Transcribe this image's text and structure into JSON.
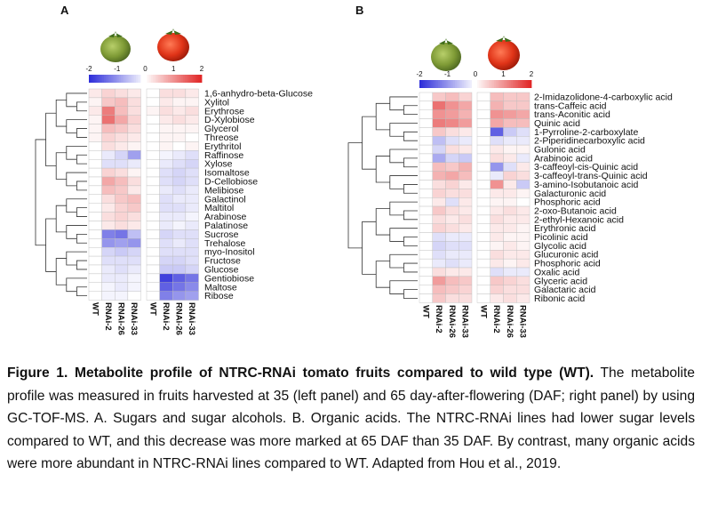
{
  "chart_data": [
    {
      "type": "heatmap",
      "title": "A",
      "columns": [
        "WT",
        "RNAi-2",
        "RNAi-26",
        "RNAi-33",
        "WT",
        "RNAi-2",
        "RNAi-26",
        "RNAi-33"
      ],
      "rows": [
        "1,6-anhydro-beta-Glucose",
        "Xylitol",
        "Erythrose",
        "D-Xylobiose",
        "Glycerol",
        "Threose",
        "Erythritol",
        "Raffinose",
        "Xylose",
        "Isomaltose",
        "D-Cellobiose",
        "Melibiose",
        "Galactinol",
        "Maltitol",
        "Arabinose",
        "Palatinose",
        "Sucrose",
        "Trehalose",
        "myo-Inositol",
        "Fructose",
        "Glucose",
        "Gentiobiose",
        "Maltose",
        "Ribose"
      ],
      "values": [
        [
          0.2,
          0.4,
          0.3,
          0.2,
          0,
          0.3,
          0.3,
          0.2
        ],
        [
          0.1,
          0.5,
          0.6,
          0.3,
          0,
          0.2,
          0.1,
          0.1
        ],
        [
          0.2,
          1.2,
          0.6,
          0.3,
          0.1,
          0.3,
          0.2,
          0.3
        ],
        [
          0.1,
          1.3,
          0.8,
          0.4,
          0,
          0.2,
          0.3,
          0.2
        ],
        [
          0.1,
          0.6,
          0.5,
          0.3,
          0,
          0.1,
          0.1,
          0.1
        ],
        [
          0.1,
          0.4,
          0.3,
          0.2,
          0,
          0.1,
          0.1,
          0
        ],
        [
          0,
          0.3,
          0.2,
          0.1,
          0,
          0.1,
          0,
          0.1
        ],
        [
          0,
          -0.2,
          -0.4,
          -0.9,
          0,
          -0.1,
          -0.2,
          -0.3
        ],
        [
          0,
          -0.3,
          -0.3,
          -0.2,
          0,
          -0.2,
          -0.3,
          -0.4
        ],
        [
          0,
          0.4,
          0.3,
          0.1,
          0,
          -0.3,
          -0.4,
          -0.3
        ],
        [
          0,
          0.8,
          0.6,
          0.3,
          0,
          -0.3,
          -0.4,
          -0.3
        ],
        [
          0,
          0.6,
          0.5,
          0.2,
          0,
          -0.2,
          -0.3,
          -0.2
        ],
        [
          0,
          0.3,
          0.5,
          0.6,
          0,
          -0.3,
          -0.2,
          -0.2
        ],
        [
          0,
          0.2,
          0.4,
          0.5,
          0,
          -0.3,
          -0.3,
          -0.2
        ],
        [
          0,
          0.3,
          0.4,
          0.3,
          0,
          -0.2,
          -0.2,
          -0.1
        ],
        [
          0,
          0.2,
          0.3,
          0.2,
          0,
          -0.2,
          -0.1,
          -0.2
        ],
        [
          0,
          -1.2,
          -1.3,
          -0.6,
          0,
          -0.4,
          -0.3,
          -0.3
        ],
        [
          0,
          -1,
          -0.9,
          -1,
          0,
          -0.3,
          -0.2,
          -0.3
        ],
        [
          0,
          -0.4,
          -0.5,
          -0.4,
          0,
          -0.3,
          -0.3,
          -0.3
        ],
        [
          0,
          -0.3,
          -0.3,
          -0.3,
          0,
          -0.4,
          -0.4,
          -0.3
        ],
        [
          0,
          -0.2,
          -0.3,
          -0.2,
          0,
          -0.5,
          -0.5,
          -0.4
        ],
        [
          0,
          -0.2,
          -0.2,
          -0.1,
          0,
          -1.8,
          -1.5,
          -1.3
        ],
        [
          0,
          -0.1,
          -0.2,
          -0.1,
          0,
          -1.5,
          -1.3,
          -1.1
        ],
        [
          0,
          -0.1,
          -0.1,
          0,
          0,
          -1.2,
          -1,
          -0.9
        ]
      ],
      "clim": [
        -2,
        2
      ],
      "cticks": [
        -2,
        -1,
        0,
        1,
        2
      ],
      "colors": [
        "#2b2bd9",
        "#ffffff",
        "#e02424"
      ]
    },
    {
      "type": "heatmap",
      "title": "B",
      "columns": [
        "WT",
        "RNAi-2",
        "RNAi-26",
        "RNAi-33",
        "WT",
        "RNAi-2",
        "RNAi-26",
        "RNAi-33"
      ],
      "rows": [
        "2-Imidazolidone-4-carboxylic acid",
        "trans-Caffeic acid",
        "trans-Aconitic acid",
        "Quinic acid",
        "1-Pyrroline-2-carboxylate",
        "2-Piperidinecarboxylic acid",
        "Gulonic acid",
        "Arabinoic acid",
        "3-caffeoyl-cis-Quinic acid",
        "3-caffeoyl-trans-Quinic acid",
        "3-amino-Isobutanoic acid",
        "Galacturonic acid",
        "Phosphoric acid",
        "2-oxo-Butanoic acid",
        "2-ethyl-Hexanoic acid",
        "Erythronic acid",
        "Picolinic acid",
        "Glycolic acid",
        "Glucuronic acid",
        "Phosphoric acid",
        "Oxalic acid",
        "Glyceric acid",
        "Galactaric acid",
        "Ribonic acid"
      ],
      "values": [
        [
          0,
          0.5,
          0.6,
          0.4,
          0,
          0.6,
          0.5,
          0.5
        ],
        [
          0,
          1.3,
          1,
          0.8,
          0,
          0.7,
          0.5,
          0.5
        ],
        [
          0,
          1,
          0.9,
          0.7,
          0,
          1,
          0.9,
          0.8
        ],
        [
          0,
          1.2,
          1.1,
          0.9,
          0,
          0.8,
          0.6,
          0.6
        ],
        [
          0,
          0.5,
          0.3,
          0.2,
          0,
          -1.5,
          -0.5,
          -0.3
        ],
        [
          0,
          -0.6,
          -0.3,
          -0.2,
          0,
          -0.3,
          -0.2,
          -0.2
        ],
        [
          0,
          -0.4,
          0.3,
          0.2,
          0,
          0.2,
          0.1,
          0.1
        ],
        [
          0,
          -0.8,
          -0.4,
          -0.5,
          0,
          0.3,
          0.2,
          -0.2
        ],
        [
          0,
          0.6,
          0.5,
          0.7,
          0,
          -1,
          -0.3,
          0.2
        ],
        [
          0,
          0.7,
          0.8,
          0.6,
          0,
          -0.2,
          0.4,
          0.3
        ],
        [
          0,
          0.3,
          0.4,
          0.2,
          0,
          1,
          0.2,
          -0.5
        ],
        [
          0,
          0.4,
          0.3,
          0.3,
          0,
          0.2,
          0.2,
          0.1
        ],
        [
          0,
          0.2,
          -0.3,
          0.2,
          0,
          0.1,
          0.1,
          0
        ],
        [
          0,
          0.5,
          0.3,
          0.2,
          0,
          0.2,
          0.3,
          0.2
        ],
        [
          0,
          0.3,
          0.2,
          0.3,
          0,
          0.3,
          0.2,
          0.2
        ],
        [
          0,
          0.4,
          0.3,
          0.2,
          0,
          0.2,
          0.2,
          0.1
        ],
        [
          0,
          -0.3,
          -0.2,
          -0.2,
          0,
          0.2,
          0.1,
          0.1
        ],
        [
          0,
          -0.4,
          -0.3,
          -0.3,
          0,
          0.1,
          0.2,
          0.1
        ],
        [
          0,
          -0.3,
          -0.2,
          -0.2,
          0,
          0.3,
          0.2,
          0.2
        ],
        [
          0,
          -0.2,
          -0.3,
          -0.2,
          0,
          0.2,
          0.1,
          0.2
        ],
        [
          0,
          0.3,
          0.2,
          0.2,
          0,
          -0.3,
          -0.2,
          -0.2
        ],
        [
          0,
          0.9,
          0.6,
          0.5,
          0,
          0.5,
          0.4,
          0.3
        ],
        [
          0,
          0.6,
          0.5,
          0.4,
          0,
          0.4,
          0.3,
          0.3
        ],
        [
          0,
          0.5,
          0.3,
          0.3,
          0,
          0.2,
          0.3,
          0.2
        ]
      ],
      "clim": [
        -2,
        2
      ],
      "cticks": [
        -2,
        -1,
        0,
        1,
        2
      ],
      "colors": [
        "#2b2bd9",
        "#ffffff",
        "#e02424"
      ]
    }
  ],
  "caption": {
    "title": "Figure 1. Metabolite profile of NTRC-RNAi tomato fruits compared to wild type (WT).",
    "text": "The metabolite profile was measured in fruits harvested at 35 (left panel) and 65 day-after-flowering (DAF; right panel) by using GC-TOF-MS. A. Sugars and sugar alcohols. B. Organic acids. The NTRC-RNAi lines had lower sugar levels compared to WT, and this decrease was more marked at 65 DAF than 35 DAF. By contrast, many organic acids were more abundant in NTRC-RNAi lines compared to WT. Adapted from Hou et al., 2019."
  }
}
